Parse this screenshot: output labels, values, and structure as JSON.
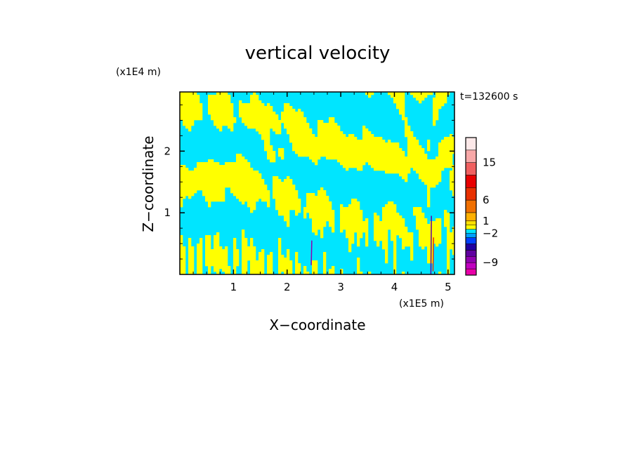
{
  "chart_data": {
    "type": "heatmap",
    "title": "vertical velocity",
    "xlabel": "X−coordinate",
    "ylabel": "Z−coordinate",
    "x_scale_label": "(x1E5 m)",
    "y_scale_label": "(x1E4 m)",
    "time_label": "t=132600 s",
    "xlim": [
      0,
      5.12
    ],
    "ylim": [
      0,
      2.96
    ],
    "x_ticks": [
      {
        "value": 1,
        "label": "1"
      },
      {
        "value": 2,
        "label": "2"
      },
      {
        "value": 3,
        "label": "3"
      },
      {
        "value": 4,
        "label": "4"
      },
      {
        "value": 5,
        "label": "5"
      }
    ],
    "y_ticks": [
      {
        "value": 1,
        "label": "1"
      },
      {
        "value": 2,
        "label": "2"
      }
    ],
    "dominant_colors": {
      "positive_weak": "#ffff00",
      "negative_weak": "#00e5ff"
    },
    "colorbar": {
      "levels": [
        -12,
        -10.5,
        -9,
        -7.5,
        -6,
        -4.5,
        -3,
        -2,
        -1,
        0,
        1,
        3,
        6,
        9,
        12,
        15,
        18,
        21
      ],
      "colors": [
        "#e800a8",
        "#c000c0",
        "#9000b0",
        "#6000a0",
        "#2000a0",
        "#0040ff",
        "#00a0ff",
        "#00e5ff",
        "#ffff00",
        "#ffe000",
        "#ffb000",
        "#f07000",
        "#e83000",
        "#e80000",
        "#f06060",
        "#f8a8a8",
        "#fce8e8"
      ],
      "labels": [
        {
          "value": 15,
          "label": "15"
        },
        {
          "value": 6,
          "label": "6"
        },
        {
          "value": 1,
          "label": "1"
        },
        {
          "value": -2,
          "label": "−2"
        },
        {
          "value": -9,
          "label": "−9"
        }
      ]
    }
  }
}
